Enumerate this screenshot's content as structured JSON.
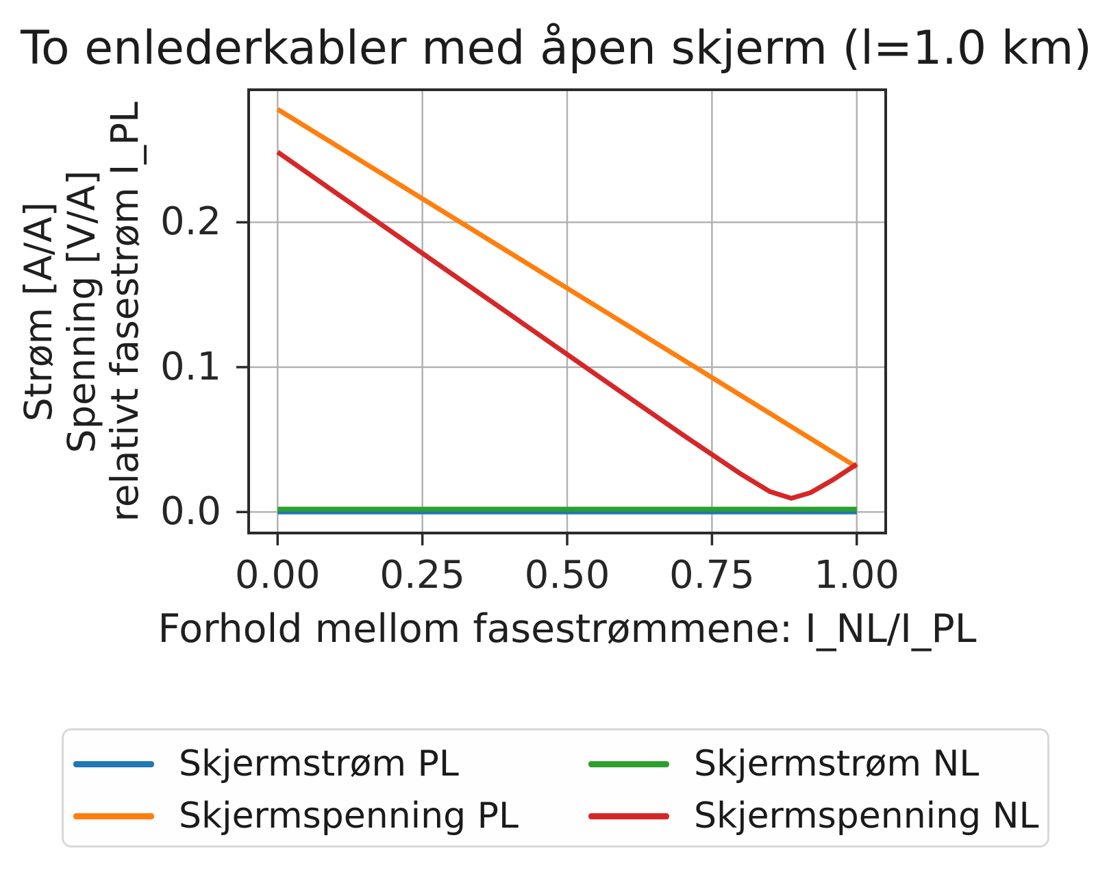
{
  "chart_data": {
    "type": "line",
    "title": "To enlederkabler med åpen skjerm (l=1.0 km)",
    "xlabel": "Forhold mellom fasestrømmene: I_NL/I_PL",
    "ylabel_lines": [
      "Strøm [A/A]",
      "Spenning [V/A]",
      "relativt fasestrøm I_PL"
    ],
    "xlim": [
      -0.05,
      1.05
    ],
    "ylim": [
      -0.0145,
      0.2915
    ],
    "xticks": [
      0.0,
      0.25,
      0.5,
      0.75,
      1.0
    ],
    "xtick_labels": [
      "0.00",
      "0.25",
      "0.50",
      "0.75",
      "1.00"
    ],
    "yticks": [
      0.0,
      0.1,
      0.2
    ],
    "ytick_labels": [
      "0.0",
      "0.1",
      "0.2"
    ],
    "grid": true,
    "grid_color": "#b0b0b0",
    "frame_color": "#2b2b2b",
    "legend_position": "below, 2 columns",
    "series": [
      {
        "name": "Skjermstrøm PL",
        "color": "#1f77b4",
        "note": "flat at zero, hidden beneath Skjermstrøm NL",
        "x": [
          0.0,
          0.25,
          0.5,
          0.75,
          1.0
        ],
        "y": [
          0.0,
          0.0,
          0.0,
          0.0,
          0.0
        ]
      },
      {
        "name": "Skjermspenning PL",
        "color": "#ff7f0e",
        "note": "linear decrease",
        "x": [
          0.0,
          0.25,
          0.5,
          0.75,
          1.0
        ],
        "y": [
          0.278,
          0.2163,
          0.1545,
          0.0928,
          0.031
        ]
      },
      {
        "name": "Skjermstrøm NL",
        "color": "#2ca02c",
        "note": "flat at ~0",
        "x": [
          0.0,
          0.25,
          0.5,
          0.75,
          1.0
        ],
        "y": [
          0.002,
          0.002,
          0.002,
          0.002,
          0.002
        ]
      },
      {
        "name": "Skjermspenning NL",
        "color": "#d62728",
        "note": "decreases to minimum ~0.0095 at x~0.89 then rises",
        "x": [
          0.0,
          0.1,
          0.2,
          0.3,
          0.4,
          0.5,
          0.6,
          0.7,
          0.8,
          0.85,
          0.887,
          0.92,
          0.96,
          1.0
        ],
        "y": [
          0.2485,
          0.2205,
          0.1926,
          0.1646,
          0.1367,
          0.1088,
          0.0809,
          0.0532,
          0.0262,
          0.0141,
          0.0095,
          0.0133,
          0.0225,
          0.033
        ]
      }
    ]
  },
  "legend": {
    "columns": [
      [
        {
          "label": "Skjermstrøm PL",
          "color": "#1f77b4"
        },
        {
          "label": "Skjermspenning PL",
          "color": "#ff7f0e"
        }
      ],
      [
        {
          "label": "Skjermstrøm NL",
          "color": "#2ca02c"
        },
        {
          "label": "Skjermspenning NL",
          "color": "#d62728"
        }
      ]
    ]
  }
}
